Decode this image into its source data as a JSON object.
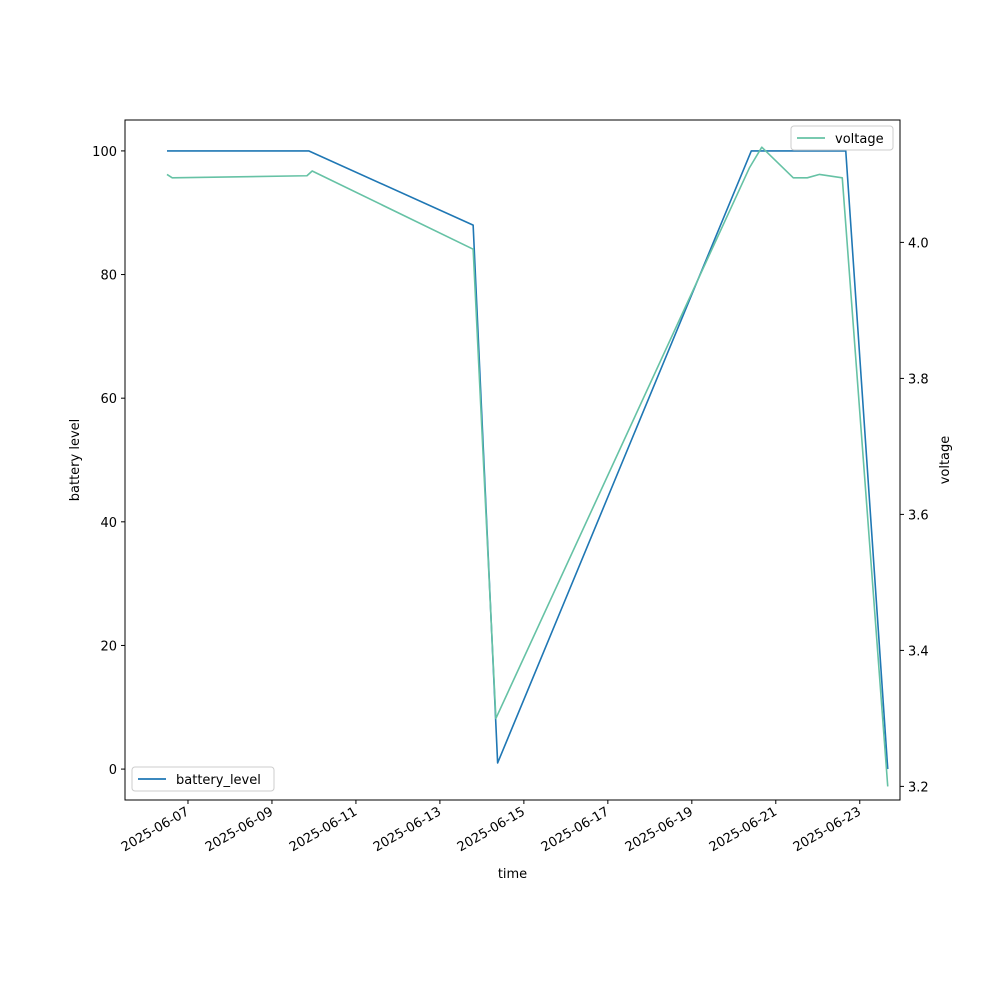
{
  "chart_data": {
    "type": "line",
    "xlabel": "time",
    "ylabel": "battery level",
    "ylabel_right": "voltage",
    "x_ticks": [
      "2025-06-07",
      "2025-06-09",
      "2025-06-11",
      "2025-06-13",
      "2025-06-15",
      "2025-06-17",
      "2025-06-19",
      "2025-06-21",
      "2025-06-23"
    ],
    "y_ticks_left": [
      "0",
      "20",
      "40",
      "60",
      "80",
      "100"
    ],
    "y_ticks_right": [
      "3.2",
      "3.4",
      "3.6",
      "3.8",
      "4.0"
    ],
    "xlim": [
      "2025-06-05T12:00",
      "2025-06-23T23:00"
    ],
    "ylim_left": [
      -5,
      105
    ],
    "ylim_right": [
      3.18,
      4.18
    ],
    "grid": false,
    "series": [
      {
        "name": "battery_level",
        "axis": "left",
        "color": "#1f77b4",
        "legend_position": "lower-left",
        "points": [
          {
            "x": "2025-06-06T12:00",
            "y": 100
          },
          {
            "x": "2025-06-09T21:00",
            "y": 100
          },
          {
            "x": "2025-06-13T19:00",
            "y": 88
          },
          {
            "x": "2025-06-14T09:00",
            "y": 1
          },
          {
            "x": "2025-06-20T10:00",
            "y": 100
          },
          {
            "x": "2025-06-22T16:00",
            "y": 100
          },
          {
            "x": "2025-06-23T16:00",
            "y": 0
          }
        ]
      },
      {
        "name": "voltage",
        "axis": "right",
        "color": "#66c2a5",
        "legend_position": "upper-right",
        "points": [
          {
            "x": "2025-06-06T12:00",
            "y": 4.1
          },
          {
            "x": "2025-06-06T15:00",
            "y": 4.095
          },
          {
            "x": "2025-06-09T20:00",
            "y": 4.098
          },
          {
            "x": "2025-06-09T23:00",
            "y": 4.105
          },
          {
            "x": "2025-06-13T19:00",
            "y": 3.99
          },
          {
            "x": "2025-06-14T08:00",
            "y": 3.3
          },
          {
            "x": "2025-06-20T09:00",
            "y": 4.11
          },
          {
            "x": "2025-06-20T16:00",
            "y": 4.14
          },
          {
            "x": "2025-06-21T10:00",
            "y": 4.095
          },
          {
            "x": "2025-06-21T18:00",
            "y": 4.095
          },
          {
            "x": "2025-06-22T01:00",
            "y": 4.1
          },
          {
            "x": "2025-06-22T14:00",
            "y": 4.095
          },
          {
            "x": "2025-06-23T16:00",
            "y": 3.2
          }
        ]
      }
    ]
  }
}
